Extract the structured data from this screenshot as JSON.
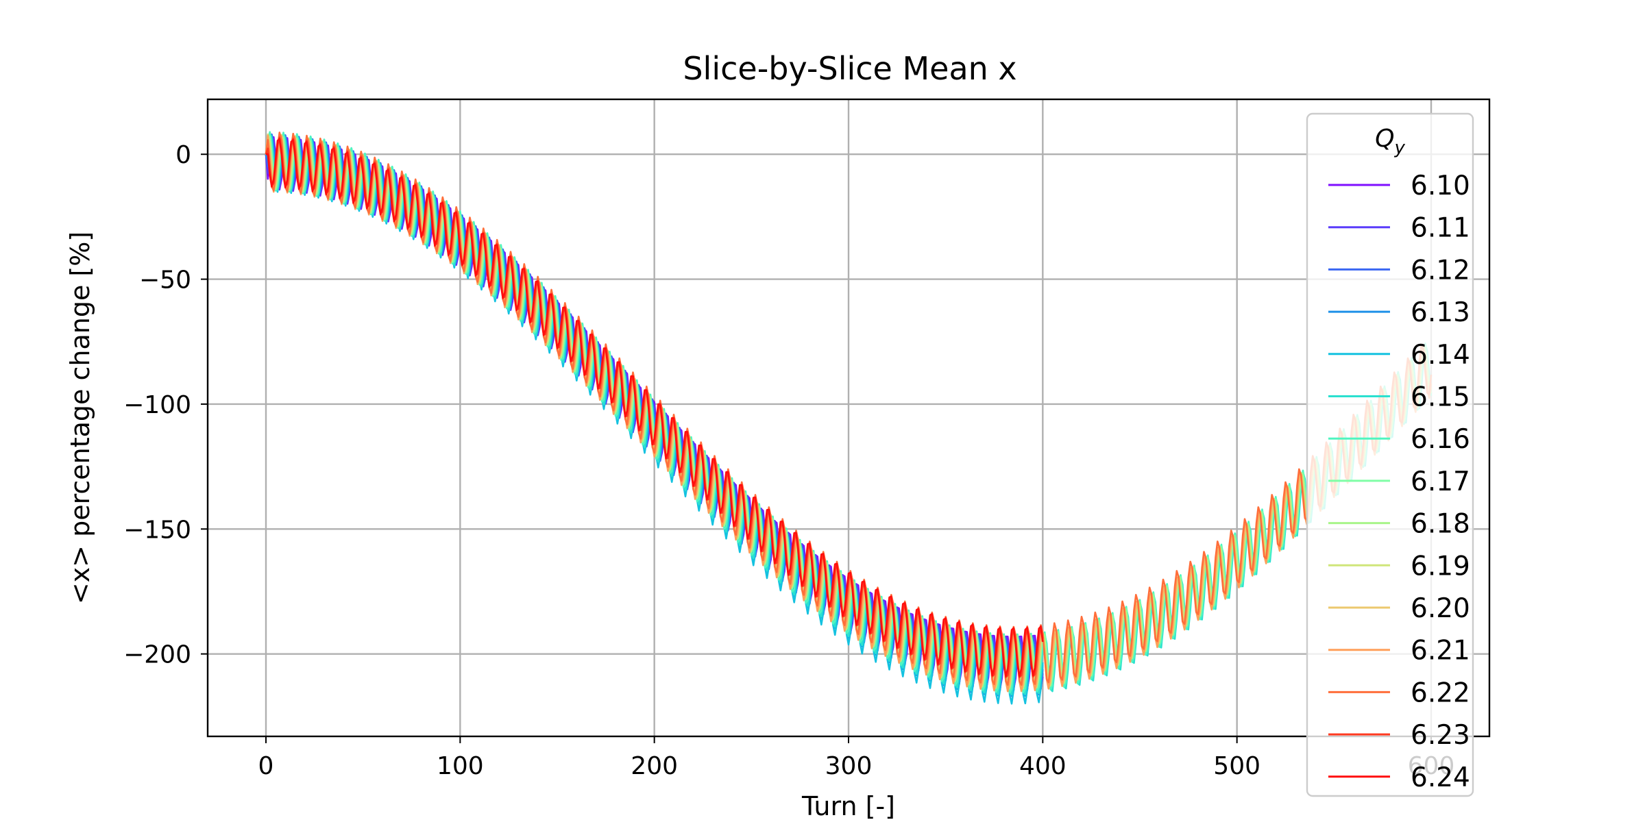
{
  "colors": {
    "grid": "#b0b0b0",
    "axes": "#000000",
    "legend_frame": "#cccccc",
    "background": "#ffffff"
  },
  "chart_data": {
    "type": "line",
    "title": "Slice-by-Slice Mean x",
    "xlabel": "Turn [-]",
    "ylabel": "<x> percentage change [%]",
    "xlim": [
      -30,
      630
    ],
    "ylim": [
      -233,
      22
    ],
    "xticks": [
      0,
      100,
      200,
      300,
      400,
      500,
      600
    ],
    "xtick_labels": [
      "0",
      "100",
      "200",
      "300",
      "400",
      "500",
      "600"
    ],
    "yticks": [
      0,
      -50,
      -100,
      -150,
      -200
    ],
    "ytick_labels": [
      "0",
      "−50",
      "−100",
      "−150",
      "−200"
    ],
    "grid": true,
    "legend": {
      "title": "Q_y",
      "placement": "right"
    },
    "turn_period": 7,
    "series": [
      {
        "name": "6.10",
        "color": "#7f0fff",
        "turns": 400,
        "trend_min": -200,
        "oscillation_amplitude": 11
      },
      {
        "name": "6.11",
        "color": "#5a3cfb",
        "turns": 400,
        "trend_min": -201,
        "oscillation_amplitude": 11
      },
      {
        "name": "6.12",
        "color": "#3a66f2",
        "turns": 400,
        "trend_min": -202,
        "oscillation_amplitude": 11
      },
      {
        "name": "6.13",
        "color": "#1e90e8",
        "turns": 400,
        "trend_min": -203,
        "oscillation_amplitude": 11
      },
      {
        "name": "6.14",
        "color": "#14c2e0",
        "turns": 400,
        "trend_min": -205,
        "oscillation_amplitude": 12
      },
      {
        "name": "6.15",
        "color": "#2be0d0",
        "turns": 600,
        "trend_min": -202,
        "oscillation_amplitude": 12
      },
      {
        "name": "6.16",
        "color": "#50f5c0",
        "turns": 600,
        "trend_min": -201,
        "oscillation_amplitude": 12
      },
      {
        "name": "6.17",
        "color": "#80fea6",
        "turns": 600,
        "trend_min": -200,
        "oscillation_amplitude": 11
      },
      {
        "name": "6.18",
        "color": "#a8f58a",
        "turns": 600,
        "trend_min": -200,
        "oscillation_amplitude": 11
      },
      {
        "name": "6.19",
        "color": "#cfe67a",
        "turns": 600,
        "trend_min": -200,
        "oscillation_amplitude": 11
      },
      {
        "name": "6.20",
        "color": "#ecc86e",
        "turns": 600,
        "trend_min": -201,
        "oscillation_amplitude": 11
      },
      {
        "name": "6.21",
        "color": "#ffa05a",
        "turns": 600,
        "trend_min": -200,
        "oscillation_amplitude": 12
      },
      {
        "name": "6.22",
        "color": "#ff6e3a",
        "turns": 600,
        "trend_min": -198,
        "oscillation_amplitude": 12
      },
      {
        "name": "6.23",
        "color": "#ff3a20",
        "turns": 400,
        "trend_min": -197,
        "oscillation_amplitude": 10
      },
      {
        "name": "6.24",
        "color": "#ff0e0e",
        "turns": 400,
        "trend_min": -196,
        "oscillation_amplitude": 10
      }
    ]
  }
}
